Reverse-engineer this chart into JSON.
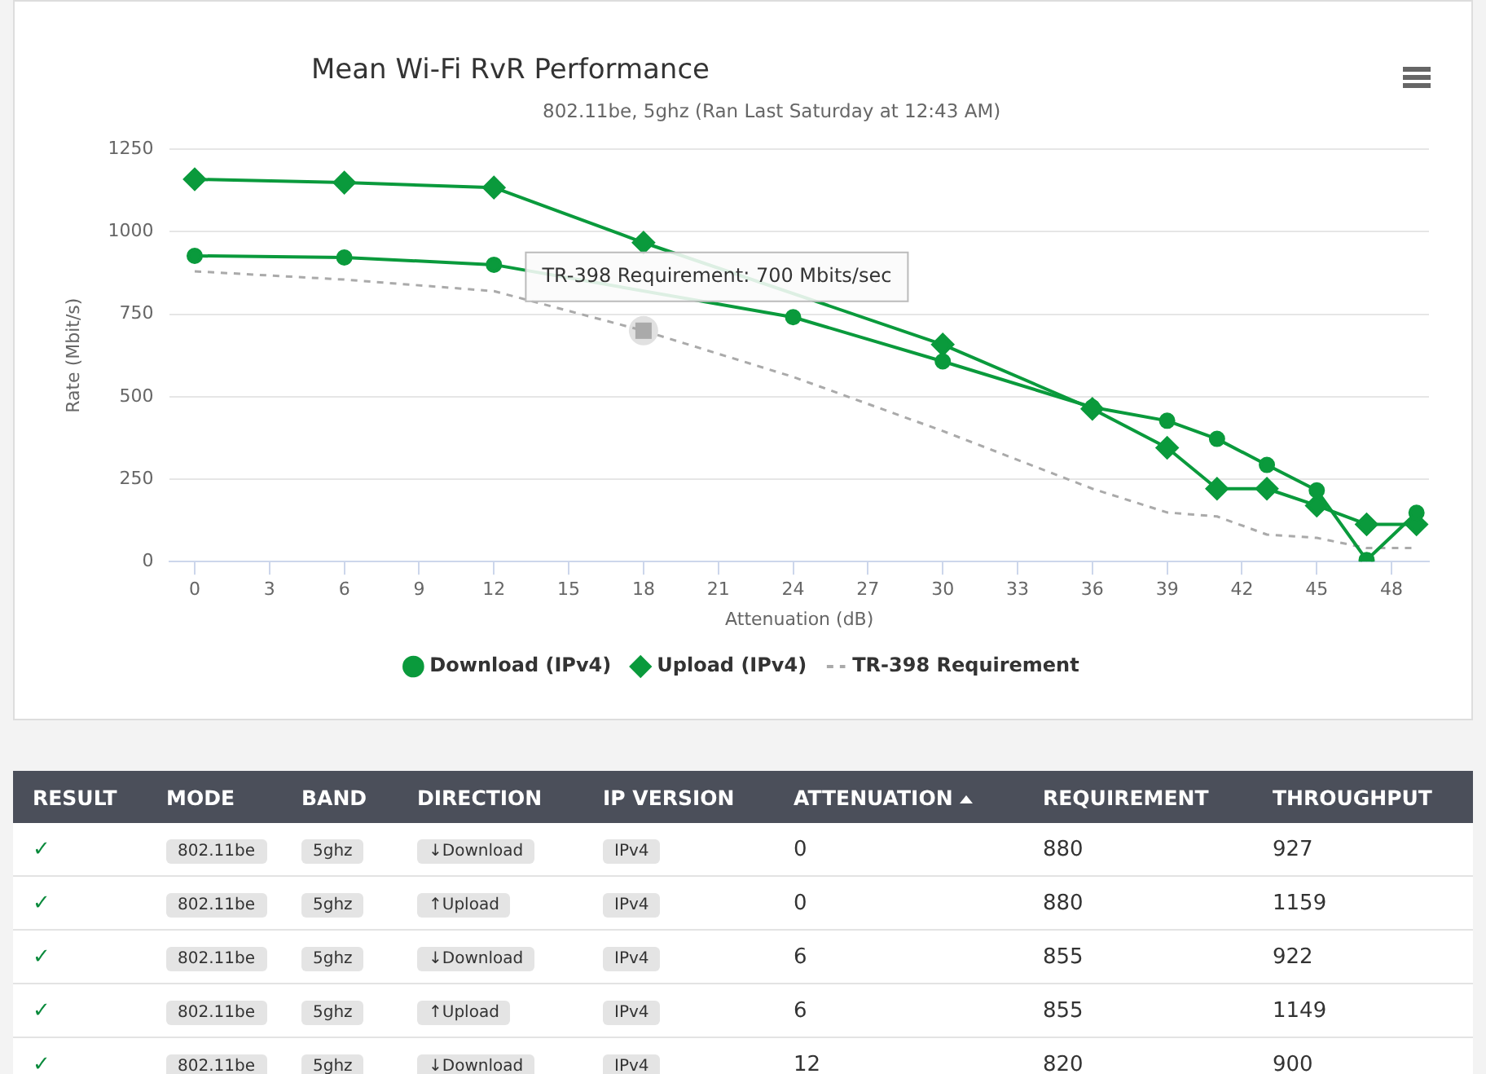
{
  "chart_data": [
    {
      "type": "line",
      "title": "Mean Wi-Fi RvR Performance",
      "subtitle": "802.11be, 5ghz (Ran Last Saturday at 12:43 AM)",
      "xlabel": "Attenuation (dB)",
      "ylabel": "Rate (Mbit/s)",
      "x": [
        0,
        6,
        12,
        18,
        24,
        30,
        36,
        39,
        41,
        43,
        45,
        47,
        49
      ],
      "series": [
        {
          "name": "Download (IPv4)",
          "color": "#0a9a3c",
          "marker": "circle",
          "values": [
            927,
            922,
            900,
            null,
            741,
            607,
            468,
            427,
            372,
            293,
            216,
            5,
            148
          ]
        },
        {
          "name": "Upload (IPv4)",
          "color": "#0a9a3c",
          "marker": "diamond",
          "values": [
            1159,
            1149,
            1134,
            967,
            null,
            658,
            463,
            345,
            221,
            221,
            170,
            113,
            113
          ]
        },
        {
          "name": "TR-398 Requirement",
          "color": "#aaaaaa",
          "marker": "none",
          "line_style": "dashed",
          "values": [
            880,
            855,
            820,
            700,
            560,
            396,
            221,
            149,
            137,
            82,
            72,
            41,
            41
          ]
        }
      ],
      "xlim": [
        -1,
        49.5
      ],
      "xticks": [
        0,
        3,
        6,
        9,
        12,
        15,
        18,
        21,
        24,
        27,
        30,
        33,
        36,
        39,
        42,
        45,
        48
      ],
      "ylim": [
        0,
        1250
      ],
      "yticks": [
        0,
        250,
        500,
        750,
        1000,
        1250
      ],
      "grid": "y",
      "legend": "bottom",
      "annotations": [
        {
          "text": "TR-398 Requirement: 700 Mbits/sec",
          "x": 18,
          "y": 700
        }
      ]
    },
    {
      "type": "other",
      "categories": [
        "RESULT",
        "MODE",
        "BAND",
        "DIRECTION",
        "IP VERSION",
        "ATTENUATION",
        "REQUIREMENT",
        "THROUGHPUT"
      ],
      "annotations": [
        "✓",
        "802.11be",
        "5ghz",
        "↓Download",
        "IPv4",
        "0",
        "880",
        "927",
        "✓",
        "802.11be",
        "5ghz",
        "↑Upload",
        "IPv4",
        "0",
        "880",
        "1159",
        "✓",
        "802.11be",
        "5ghz",
        "↓Download",
        "IPv4",
        "6",
        "855",
        "922",
        "✓",
        "802.11be",
        "5ghz",
        "↑Upload",
        "IPv4",
        "6",
        "855",
        "1149",
        "✓",
        "802.11be",
        "5ghz",
        "↓Download",
        "IPv4",
        "12",
        "820",
        "900"
      ]
    }
  ]
}
